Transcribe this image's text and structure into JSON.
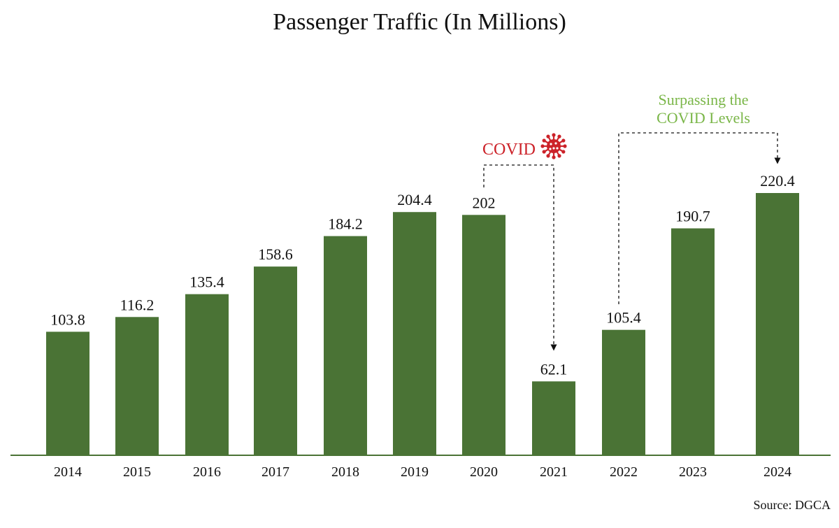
{
  "colors": {
    "bar": "#4a7335",
    "axis": "#4a7335",
    "covid": "#cc2229",
    "surpass": "#7ab648",
    "text": "#111111"
  },
  "annotations": {
    "covid": {
      "label": "COVID",
      "icon": "virus-icon"
    },
    "surpass": {
      "line1": "Surpassing the",
      "line2": "COVID Levels"
    }
  },
  "source": "Source: DGCA",
  "chart_data": {
    "type": "bar",
    "title": "Passenger Traffic (In Millions)",
    "xlabel": "",
    "ylabel": "",
    "categories": [
      "2014",
      "2015",
      "2016",
      "2017",
      "2018",
      "2019",
      "2020",
      "2021",
      "2022",
      "2023",
      "2024"
    ],
    "values": [
      103.8,
      116.2,
      135.4,
      158.6,
      184.2,
      204.4,
      202,
      62.1,
      105.4,
      190.7,
      220.4
    ],
    "labels": [
      "103.8",
      "116.2",
      "135.4",
      "158.6",
      "184.2",
      "204.4",
      "202",
      "62.1",
      "105.4",
      "190.7",
      "220.4"
    ],
    "ylim": [
      0,
      220.4
    ],
    "grid": false,
    "legend": "none"
  }
}
